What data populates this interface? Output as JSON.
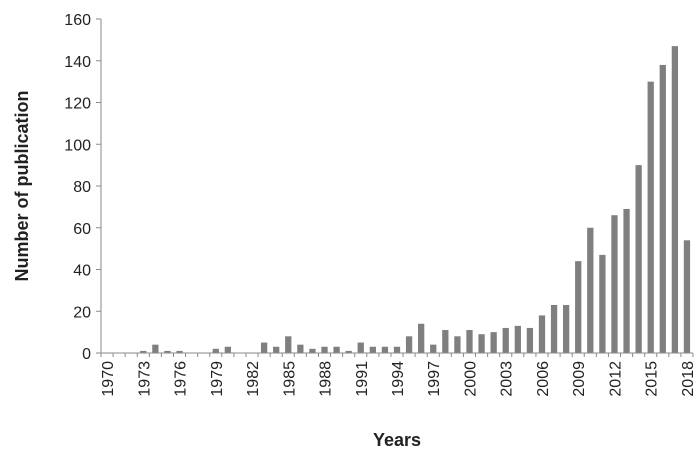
{
  "chart_data": {
    "type": "bar",
    "title": "",
    "xlabel": "Years",
    "ylabel": "Number of publication",
    "ylim": [
      0,
      160
    ],
    "yticks": [
      0,
      20,
      40,
      60,
      80,
      100,
      120,
      140,
      160
    ],
    "xtick_labels": [
      "1970",
      "1973",
      "1976",
      "1979",
      "1982",
      "1985",
      "1988",
      "1991",
      "1994",
      "1997",
      "2000",
      "2003",
      "2006",
      "2009",
      "2012",
      "2015",
      "2018"
    ],
    "grid": false,
    "legend": "none",
    "bar_color": "#7f7f7f",
    "axis_color": "#8a8a8a",
    "categories": [
      "1970",
      "1971",
      "1972",
      "1973",
      "1974",
      "1975",
      "1976",
      "1977",
      "1978",
      "1979",
      "1980",
      "1981",
      "1982",
      "1983",
      "1984",
      "1985",
      "1986",
      "1987",
      "1988",
      "1989",
      "1990",
      "1991",
      "1992",
      "1993",
      "1994",
      "1995",
      "1996",
      "1997",
      "1998",
      "1999",
      "2000",
      "2001",
      "2002",
      "2003",
      "2004",
      "2005",
      "2006",
      "2007",
      "2008",
      "2009",
      "2010",
      "2011",
      "2012",
      "2013",
      "2014",
      "2015",
      "2016",
      "2017",
      "2018"
    ],
    "values": [
      0,
      0,
      0,
      1,
      4,
      1,
      1,
      0,
      0,
      2,
      3,
      0,
      0,
      5,
      3,
      8,
      4,
      2,
      3,
      3,
      1,
      5,
      3,
      3,
      3,
      8,
      14,
      4,
      11,
      8,
      11,
      9,
      10,
      12,
      13,
      12,
      18,
      23,
      23,
      44,
      60,
      47,
      66,
      69,
      90,
      130,
      138,
      147,
      54
    ]
  }
}
